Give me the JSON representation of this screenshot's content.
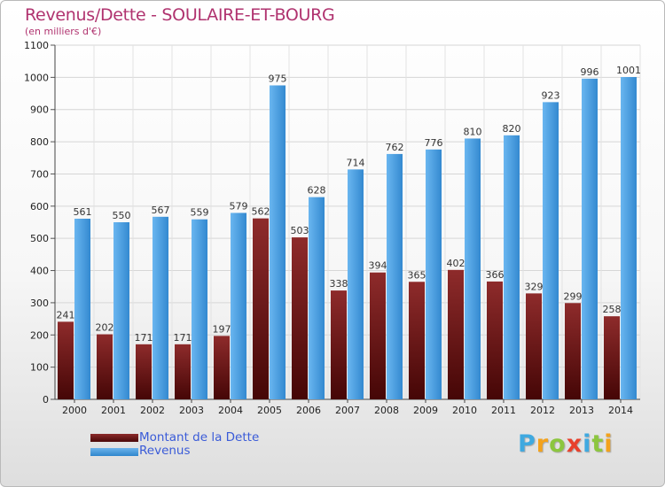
{
  "title": "Revenus/Dette - SOULAIRE-ET-BOURG",
  "subtitle": "(en milliers d'€)",
  "legend": {
    "dette": "Montant de la Dette",
    "revenus": "Revenus"
  },
  "brand": {
    "text": "Proxiti",
    "letters": [
      "P",
      "r",
      "o",
      "x",
      "i",
      "t",
      "i"
    ],
    "letter_colors": [
      "#3fa9e0",
      "#f3a21c",
      "#8cc63f",
      "#e8412c",
      "#3fa9e0",
      "#8cc63f",
      "#f3a21c"
    ]
  },
  "colors": {
    "dette": "#6e1a1a",
    "revenus": "#4a9fe0",
    "title": "#b0336f",
    "legend_text": "#3a5bd8"
  },
  "chart_data": {
    "type": "bar",
    "title": "Revenus/Dette - SOULAIRE-ET-BOURG",
    "ylabel": "(en milliers d'€)",
    "xlabel": "",
    "ylim": [
      0,
      1100
    ],
    "yticks": [
      0,
      100,
      200,
      300,
      400,
      500,
      600,
      700,
      800,
      900,
      1000,
      1100
    ],
    "grid": true,
    "legend_position": "bottom-left",
    "categories": [
      "2000",
      "2001",
      "2002",
      "2003",
      "2004",
      "2005",
      "2006",
      "2007",
      "2008",
      "2009",
      "2010",
      "2011",
      "2012",
      "2013",
      "2014"
    ],
    "series": [
      {
        "name": "Montant de la Dette",
        "values": [
          241,
          202,
          171,
          171,
          197,
          562,
          503,
          338,
          394,
          365,
          402,
          366,
          329,
          299,
          258
        ]
      },
      {
        "name": "Revenus",
        "values": [
          561,
          550,
          567,
          559,
          579,
          975,
          628,
          714,
          762,
          776,
          810,
          820,
          923,
          996,
          1001
        ]
      }
    ]
  }
}
